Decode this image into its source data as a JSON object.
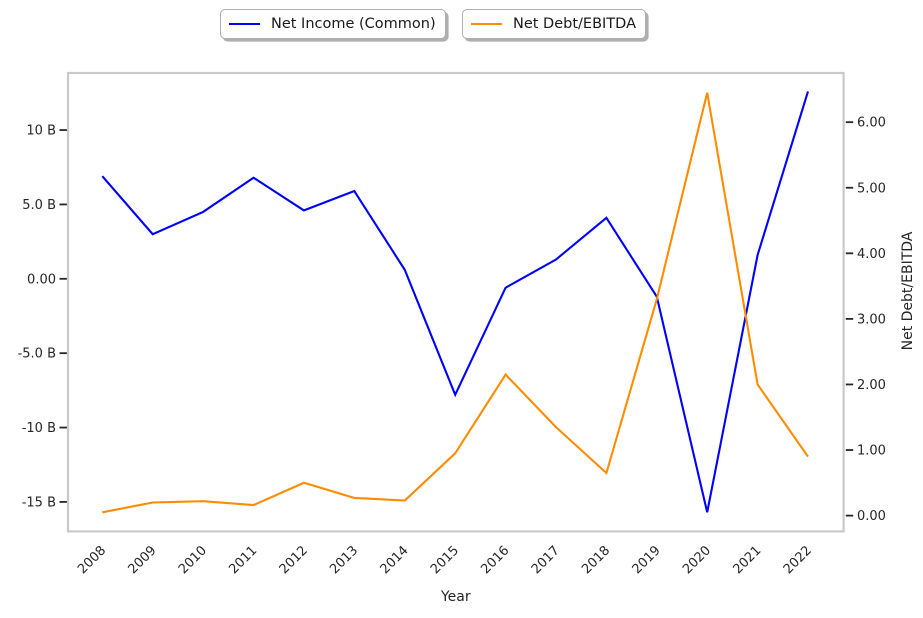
{
  "figure": {
    "background": "#ffffff",
    "spine_color": "#c9c9c9",
    "tick_color": "#262626"
  },
  "legend": {
    "item1": "Net Income (Common)",
    "item2": "Net Debt/EBITDA"
  },
  "chart_data": {
    "type": "line",
    "x": [
      2008,
      2009,
      2010,
      2011,
      2012,
      2013,
      2014,
      2015,
      2016,
      2017,
      2018,
      2019,
      2020,
      2021,
      2022
    ],
    "x_tick_labels": [
      "2008",
      "2009",
      "2010",
      "2011",
      "2012",
      "2013",
      "2014",
      "2015",
      "2016",
      "2017",
      "2018",
      "2019",
      "2020",
      "2021",
      "2022"
    ],
    "xlabel": "Year",
    "xlim": [
      2007.3,
      2022.7
    ],
    "grid": false,
    "legend_position": "upper center, two separate fancy boxes with shadow",
    "series": [
      {
        "name": "Net Income (Common)",
        "axis": "left",
        "color": "#0000ff",
        "units": "billions USD",
        "values": [
          6.9,
          3.0,
          4.5,
          6.8,
          4.6,
          5.9,
          0.6,
          -7.8,
          -0.6,
          1.3,
          4.1,
          -1.2,
          -15.7,
          1.6,
          12.6
        ]
      },
      {
        "name": "Net Debt/EBITDA",
        "axis": "right",
        "color": "#ff8c00",
        "units": "ratio",
        "values": [
          0.05,
          0.2,
          0.22,
          0.16,
          0.5,
          0.27,
          0.23,
          0.95,
          2.15,
          1.35,
          0.65,
          3.3,
          6.45,
          2.0,
          0.9
        ]
      }
    ],
    "left_axis": {
      "label": "",
      "tick_labels": [
        "10 B",
        "5.0 B",
        "0.00",
        "-5.0 B",
        "-10 B",
        "-15 B"
      ],
      "tick_values": [
        10,
        5,
        0,
        -5,
        -10,
        -15
      ],
      "ylim": [
        -17.2,
        14.0
      ]
    },
    "right_axis": {
      "label": "Net Debt/EBITDA",
      "tick_labels": [
        "6.00",
        "5.00",
        "4.00",
        "3.00",
        "2.00",
        "1.00",
        "0.00"
      ],
      "tick_values": [
        6,
        5,
        4,
        3,
        2,
        1,
        0
      ],
      "ylim": [
        -0.27,
        6.78
      ]
    }
  }
}
